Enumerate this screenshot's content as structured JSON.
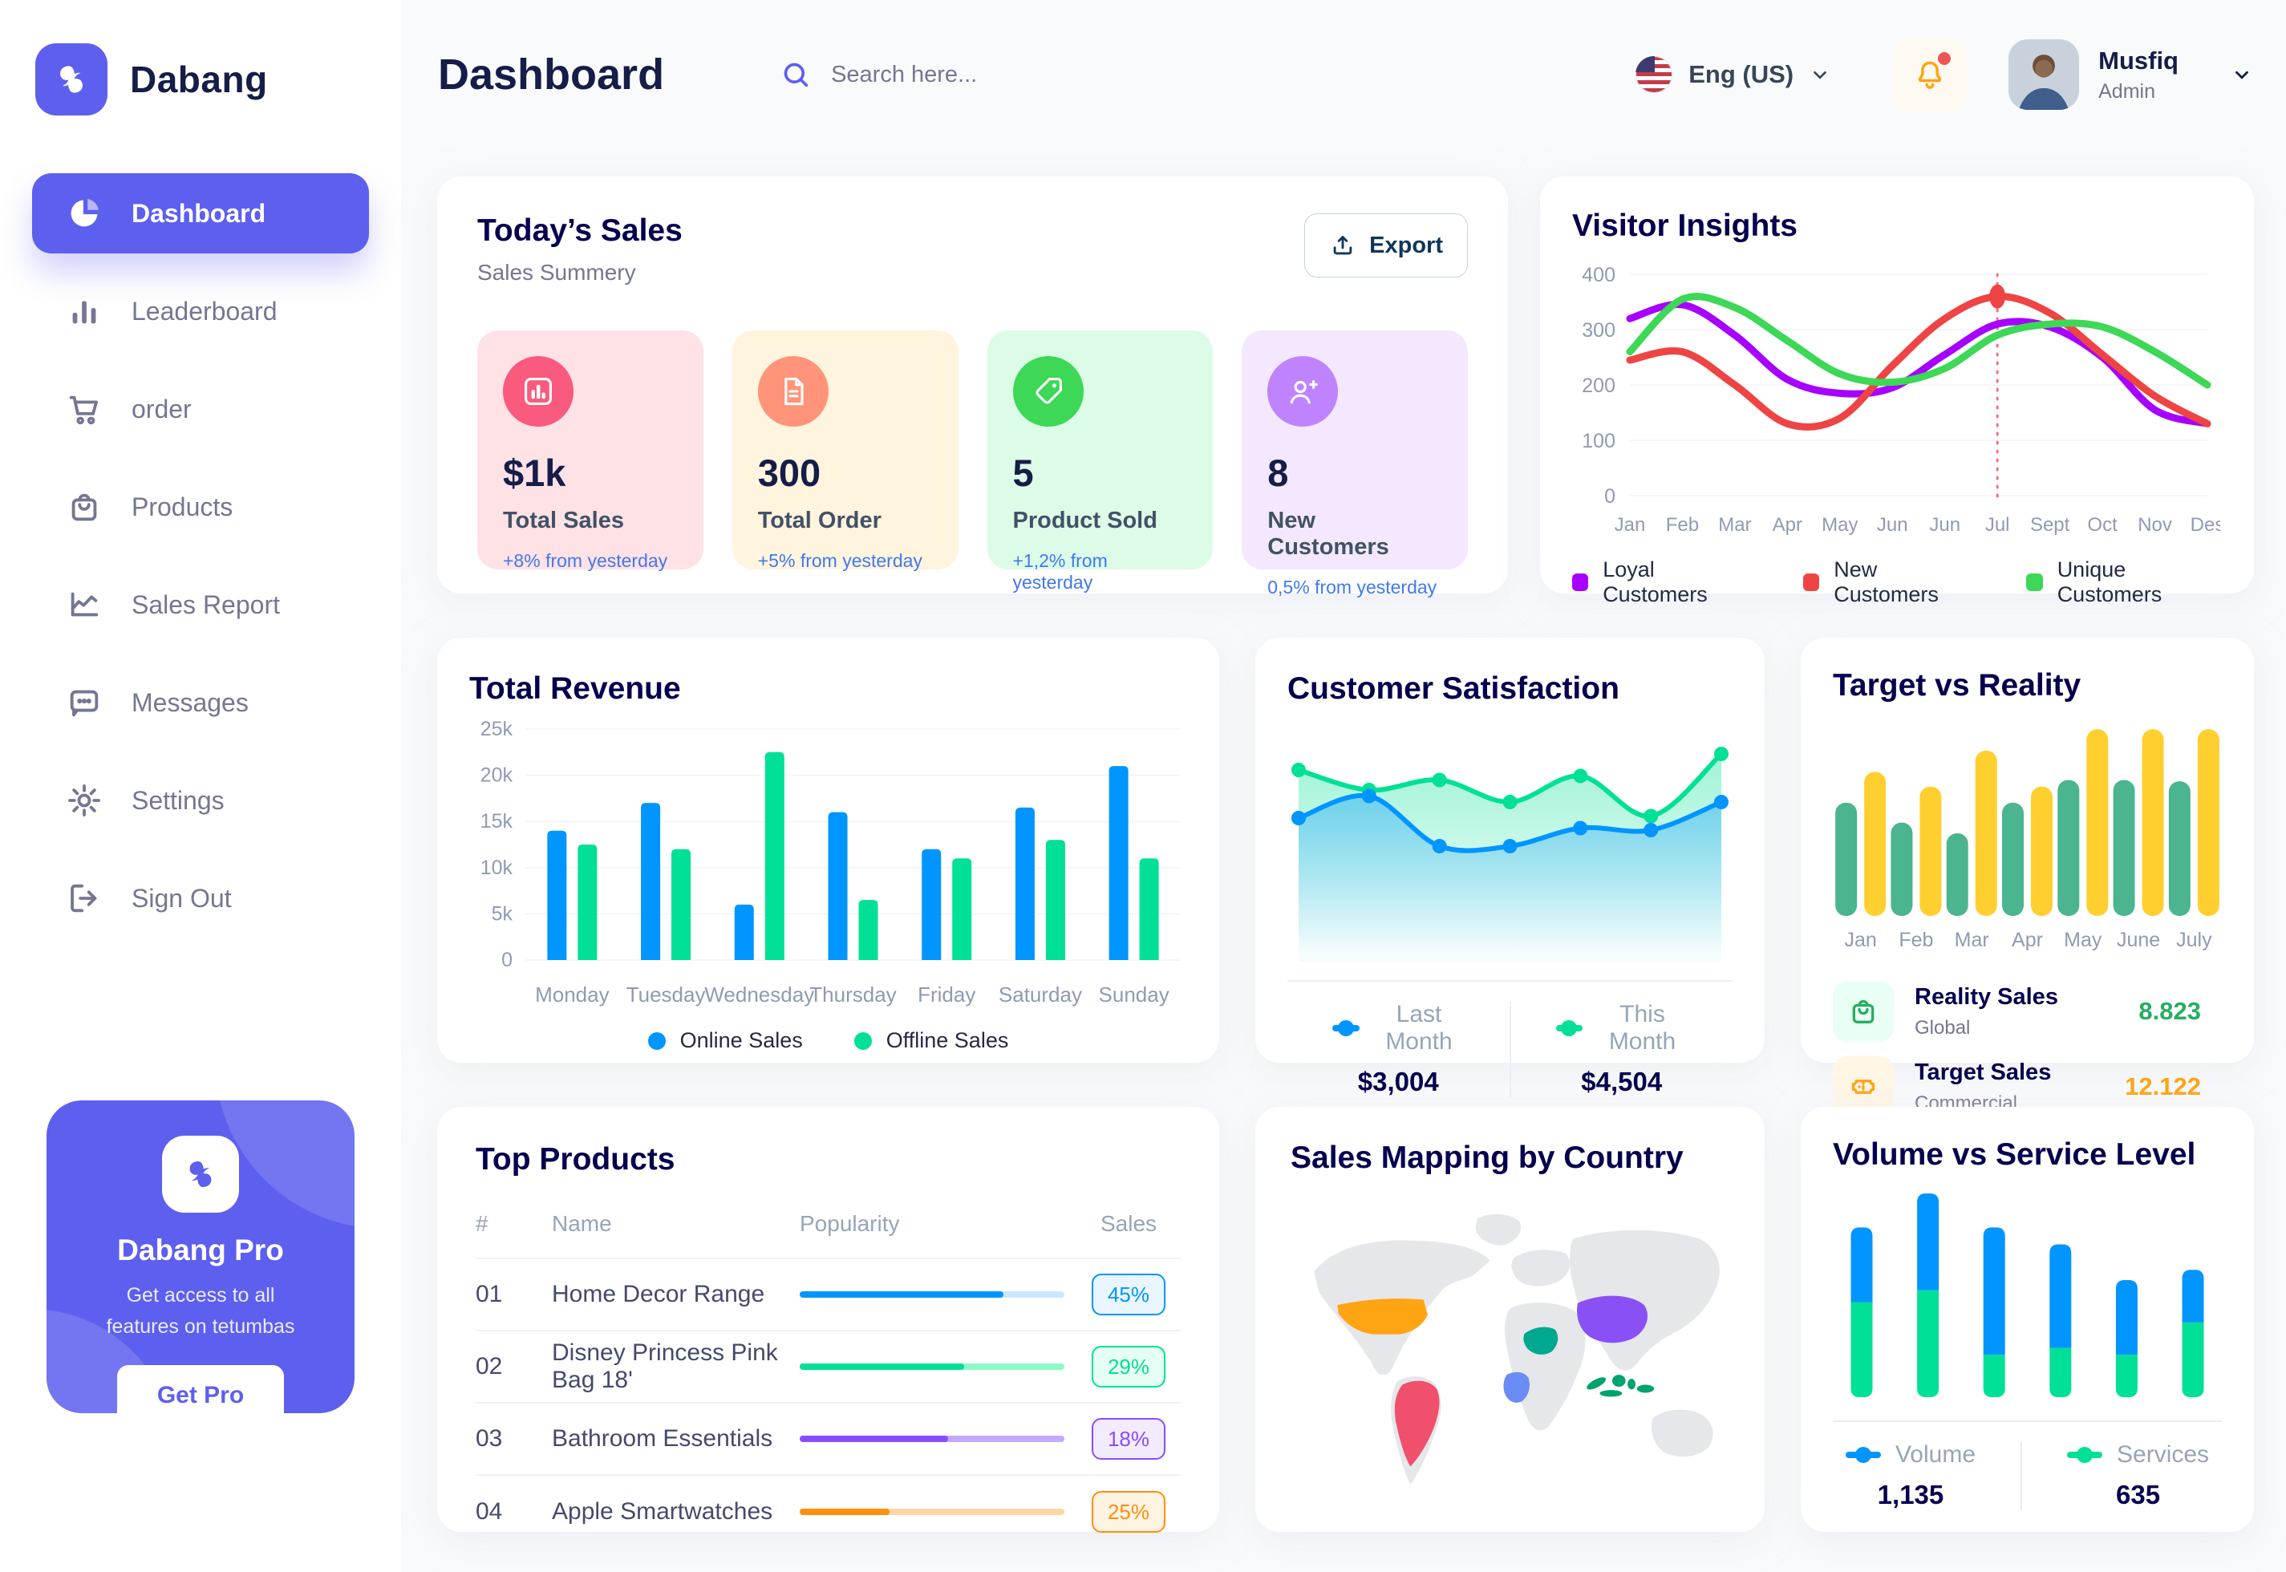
{
  "app": {
    "name": "Dabang",
    "accent_color": "#5D5FEF"
  },
  "sidebar": {
    "items": [
      {
        "label": "Dashboard",
        "icon": "pie-chart-icon",
        "active": true
      },
      {
        "label": "Leaderboard",
        "icon": "bar-chart-icon",
        "active": false
      },
      {
        "label": "order",
        "icon": "cart-icon",
        "active": false
      },
      {
        "label": "Products",
        "icon": "bag-icon",
        "active": false
      },
      {
        "label": "Sales Report",
        "icon": "line-chart-icon",
        "active": false
      },
      {
        "label": "Messages",
        "icon": "message-icon",
        "active": false
      },
      {
        "label": "Settings",
        "icon": "gear-icon",
        "active": false
      },
      {
        "label": "Sign Out",
        "icon": "sign-out-icon",
        "active": false
      }
    ],
    "pro_card": {
      "title": "Dabang Pro",
      "description": "Get access to all features on tetumbas",
      "button_label": "Get Pro"
    }
  },
  "header": {
    "title": "Dashboard",
    "search_placeholder": "Search here...",
    "language": "Eng (US)",
    "has_notification": true,
    "user": {
      "name": "Musfiq",
      "role": "Admin"
    }
  },
  "todays_sales": {
    "title": "Today’s Sales",
    "subtitle": "Sales Summery",
    "export_label": "Export",
    "cards": [
      {
        "value": "$1k",
        "label": "Total Sales",
        "delta": "+8% from yesterday",
        "bg": "#FFE2E5",
        "icon_bg": "#FA5A7D",
        "icon": "chart-bar-icon"
      },
      {
        "value": "300",
        "label": "Total Order",
        "delta": "+5% from yesterday",
        "bg": "#FFF4DE",
        "icon_bg": "#FF947A",
        "icon": "file-icon"
      },
      {
        "value": "5",
        "label": "Product Sold",
        "delta": "+1,2% from yesterday",
        "bg": "#DCFCE7",
        "icon_bg": "#3CD856",
        "icon": "tag-icon"
      },
      {
        "value": "8",
        "label": "New Customers",
        "delta": "0,5% from yesterday",
        "bg": "#F3E8FF",
        "icon_bg": "#BF83FF",
        "icon": "user-plus-icon"
      }
    ]
  },
  "top_products": {
    "title": "Top Products",
    "columns": [
      "#",
      "Name",
      "Popularity",
      "Sales"
    ],
    "rows": [
      {
        "num": "01",
        "name": "Home Decor Range",
        "popularity": 77,
        "sales": "45%",
        "color": "#0095FF",
        "track": "#CDE7FF",
        "badge_bg": "#EAF6FF"
      },
      {
        "num": "02",
        "name": "Disney Princess Pink Bag 18'",
        "popularity": 62,
        "sales": "29%",
        "color": "#00E096",
        "track": "#8CFAC7",
        "badge_bg": "#E6FFF4"
      },
      {
        "num": "03",
        "name": "Bathroom Essentials",
        "popularity": 56,
        "sales": "18%",
        "color": "#884DFF",
        "track": "#C5A8FF",
        "badge_bg": "#F3EBFF"
      },
      {
        "num": "04",
        "name": "Apple Smartwatches",
        "popularity": 34,
        "sales": "25%",
        "color": "#FF8F0D",
        "track": "#FFD5A4",
        "badge_bg": "#FFF3E2"
      }
    ]
  },
  "sales_mapping": {
    "title": "Sales Mapping by Country",
    "land_color": "#E5E7EB",
    "regions": [
      {
        "id": "usa",
        "color": "#FFA412"
      },
      {
        "id": "brazil",
        "color": "#F0506B"
      },
      {
        "id": "saudi-arabia",
        "color": "#00A88F"
      },
      {
        "id": "congo",
        "color": "#6B8CF5"
      },
      {
        "id": "china",
        "color": "#8950F6"
      },
      {
        "id": "indonesia",
        "color": "#00A36C"
      }
    ]
  },
  "chart_data": [
    {
      "id": "visitor_insights",
      "type": "line",
      "title": "Visitor Insights",
      "x": [
        "Jan",
        "Feb",
        "Mar",
        "Apr",
        "May",
        "Jun",
        "Jun",
        "Jul",
        "Sept",
        "Oct",
        "Nov",
        "Des"
      ],
      "ylim": [
        0,
        400
      ],
      "yticks": [
        0,
        100,
        200,
        300,
        400
      ],
      "grid": true,
      "legend_position": "bottom",
      "series": [
        {
          "name": "Loyal Customers",
          "color": "#A700FF",
          "values": [
            320,
            345,
            290,
            210,
            185,
            195,
            255,
            310,
            305,
            250,
            155,
            130
          ]
        },
        {
          "name": "New Customers",
          "color": "#EF4444",
          "values": [
            245,
            260,
            200,
            130,
            140,
            235,
            320,
            360,
            330,
            255,
            180,
            130
          ]
        },
        {
          "name": "Unique Customers",
          "color": "#3CD856",
          "values": [
            260,
            355,
            340,
            280,
            220,
            205,
            230,
            290,
            310,
            305,
            260,
            200
          ]
        }
      ],
      "marker": {
        "series": 1,
        "index": 7
      }
    },
    {
      "id": "total_revenue",
      "type": "bar",
      "title": "Total Revenue",
      "categories": [
        "Monday",
        "Tuesday",
        "Wednesday",
        "Thursday",
        "Friday",
        "Saturday",
        "Sunday"
      ],
      "ylim": [
        0,
        25000
      ],
      "yticks": [
        0,
        5000,
        10000,
        15000,
        20000,
        25000
      ],
      "ytick_labels": [
        "0",
        "5k",
        "10k",
        "15k",
        "20k",
        "25k"
      ],
      "grid": true,
      "legend_position": "bottom",
      "series": [
        {
          "name": "Online Sales",
          "color": "#0095FF",
          "values": [
            14000,
            17000,
            6000,
            16000,
            12000,
            16500,
            21000
          ]
        },
        {
          "name": "Offline Sales",
          "color": "#00E096",
          "values": [
            12500,
            12000,
            22500,
            6500,
            11000,
            13000,
            11000
          ]
        }
      ]
    },
    {
      "id": "customer_satisfaction",
      "type": "area",
      "title": "Customer Satisfaction",
      "ylim": [
        0,
        100
      ],
      "legend_position": "bottom",
      "series": [
        {
          "name": "Last Month",
          "color": "#0095FF",
          "total": "$3,004",
          "values": [
            62,
            73,
            48,
            48,
            57,
            56,
            70
          ]
        },
        {
          "name": "This Month",
          "color": "#00E096",
          "total": "$4,504",
          "values": [
            86,
            76,
            81,
            70,
            83,
            63,
            94
          ]
        }
      ]
    },
    {
      "id": "target_vs_reality",
      "type": "bar",
      "title": "Target vs Reality",
      "categories": [
        "Jan",
        "Feb",
        "Mar",
        "Apr",
        "May",
        "June",
        "July"
      ],
      "ylim": [
        0,
        14.5
      ],
      "series": [
        {
          "name": "Reality Sales",
          "subtitle": "Global",
          "color": "#4AB58E",
          "icon": "bag-icon",
          "icon_bg": "#E9FFF3",
          "value_label": "8.823",
          "value_color": "#27AE60",
          "values": [
            8.5,
            7,
            6.2,
            8.5,
            10.2,
            10.2,
            10.1
          ]
        },
        {
          "name": "Target Sales",
          "subtitle": "Commercial",
          "color": "#FFCF2F",
          "icon": "ticket-icon",
          "icon_bg": "#FFF6E6",
          "value_label": "12.122",
          "value_color": "#FFA412",
          "values": [
            10.8,
            9.7,
            12.4,
            9.7,
            14,
            14,
            14
          ]
        }
      ]
    },
    {
      "id": "volume_vs_service",
      "type": "stacked-bar",
      "title": "Volume vs Service Level",
      "legend_position": "bottom",
      "series": [
        {
          "name": "Volume",
          "color": "#0095FF",
          "total": "1,135",
          "values": [
            44,
            57,
            75,
            61,
            44,
            31
          ]
        },
        {
          "name": "Services",
          "color": "#00E096",
          "total": "635",
          "values": [
            56,
            63,
            25,
            29,
            25,
            44
          ]
        }
      ]
    }
  ]
}
